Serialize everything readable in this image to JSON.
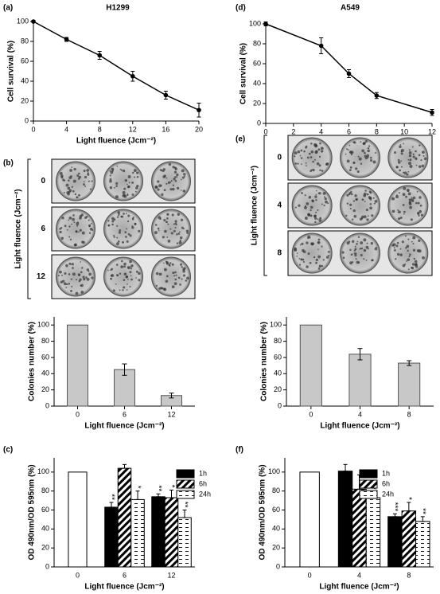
{
  "chart_data": [
    {
      "type": "line",
      "panel": "(a)",
      "title": "H1299",
      "x": [
        0,
        4,
        8,
        12,
        16,
        20
      ],
      "values": [
        100,
        82,
        66,
        45,
        26,
        11
      ],
      "errors": [
        1,
        2,
        4,
        5,
        4,
        7
      ],
      "xlim": [
        0,
        20
      ],
      "xticks": [
        0,
        4,
        8,
        12,
        16,
        20
      ],
      "ylim": [
        0,
        100
      ],
      "yticks": [
        0,
        20,
        40,
        60,
        80,
        100
      ],
      "xlabel": "Light fluence (Jcm⁻²)",
      "ylabel": "Cell survival (%)",
      "color": "#000000"
    },
    {
      "type": "line",
      "panel": "(d)",
      "title": "A549",
      "x": [
        0,
        4,
        6,
        8,
        12
      ],
      "values": [
        100,
        78,
        50,
        28,
        11
      ],
      "errors": [
        2,
        8,
        4,
        3,
        3
      ],
      "xlim": [
        0,
        12
      ],
      "xticks": [
        0,
        2,
        4,
        6,
        8,
        10,
        12
      ],
      "ylim": [
        0,
        100
      ],
      "yticks": [
        0,
        20,
        40,
        60,
        80,
        100
      ],
      "xlabel": "Light fluence (Jcm⁻²)",
      "ylabel": "Cell survival (%)",
      "color": "#000000"
    },
    {
      "type": "bar",
      "panel": "(b)",
      "photo_ylabel": "Light fluence (Jcm⁻²)",
      "photo_rows": [
        "0",
        "6",
        "12"
      ],
      "categories": [
        "0",
        "6",
        "12"
      ],
      "values": [
        100,
        45,
        13
      ],
      "errors": [
        null,
        7,
        3
      ],
      "ylim": [
        0,
        110
      ],
      "yticks": [
        0,
        20,
        40,
        60,
        80,
        100
      ],
      "xlabel": "Light fluence (Jcm⁻²)",
      "ylabel": "Colonies number (%)",
      "color": "#c8c8c8"
    },
    {
      "type": "bar",
      "panel": "(e)",
      "photo_ylabel": "Light fluence (Jcm⁻²)",
      "photo_rows": [
        "0",
        "4",
        "8"
      ],
      "categories": [
        "0",
        "4",
        "8"
      ],
      "values": [
        100,
        64,
        53
      ],
      "errors": [
        null,
        7,
        3
      ],
      "ylim": [
        0,
        110
      ],
      "yticks": [
        0,
        20,
        40,
        60,
        80,
        100
      ],
      "xlabel": "Light fluence (Jcm⁻²)",
      "ylabel": "Colonies number (%)",
      "color": "#c8c8c8"
    },
    {
      "type": "grouped_bar",
      "panel": "(c)",
      "categories": [
        "0",
        "6",
        "12"
      ],
      "control_values": [
        100,
        null,
        null
      ],
      "series": [
        {
          "name": "1h",
          "fill": "solid",
          "values": [
            null,
            63,
            74
          ],
          "errors": [
            null,
            5,
            3
          ],
          "stars": [
            null,
            "**",
            "**"
          ]
        },
        {
          "name": "6h",
          "fill": "diagonal",
          "values": [
            null,
            104,
            73
          ],
          "errors": [
            null,
            4,
            8
          ],
          "stars": [
            null,
            null,
            "*"
          ]
        },
        {
          "name": "24h",
          "fill": "dashes",
          "values": [
            null,
            71,
            52
          ],
          "errors": [
            null,
            9,
            8
          ],
          "stars": [
            null,
            "*",
            "**"
          ]
        }
      ],
      "ylim": [
        0,
        115
      ],
      "yticks": [
        0,
        20,
        40,
        60,
        80,
        100
      ],
      "xlabel": "Light fluence (Jcm⁻²)",
      "ylabel": "OD 490nm/OD 595nm (%)"
    },
    {
      "type": "grouped_bar",
      "panel": "(f)",
      "categories": [
        "0",
        "4",
        "8"
      ],
      "control_values": [
        100,
        null,
        null
      ],
      "series": [
        {
          "name": "1h",
          "fill": "solid",
          "values": [
            null,
            101,
            53
          ],
          "errors": [
            null,
            7,
            3
          ],
          "stars": [
            null,
            null,
            "***"
          ]
        },
        {
          "name": "6h",
          "fill": "diagonal",
          "values": [
            null,
            82,
            59
          ],
          "errors": [
            null,
            15,
            9
          ],
          "stars": [
            null,
            null,
            "*"
          ]
        },
        {
          "name": "24h",
          "fill": "dashes",
          "values": [
            null,
            73,
            48
          ],
          "errors": [
            null,
            6,
            5
          ],
          "stars": [
            null,
            "*",
            "**"
          ]
        }
      ],
      "ylim": [
        0,
        115
      ],
      "yticks": [
        0,
        20,
        40,
        60,
        80,
        100
      ],
      "xlabel": "Light fluence (Jcm⁻²)",
      "ylabel": "OD 490nm/OD 595nm (%)"
    }
  ]
}
